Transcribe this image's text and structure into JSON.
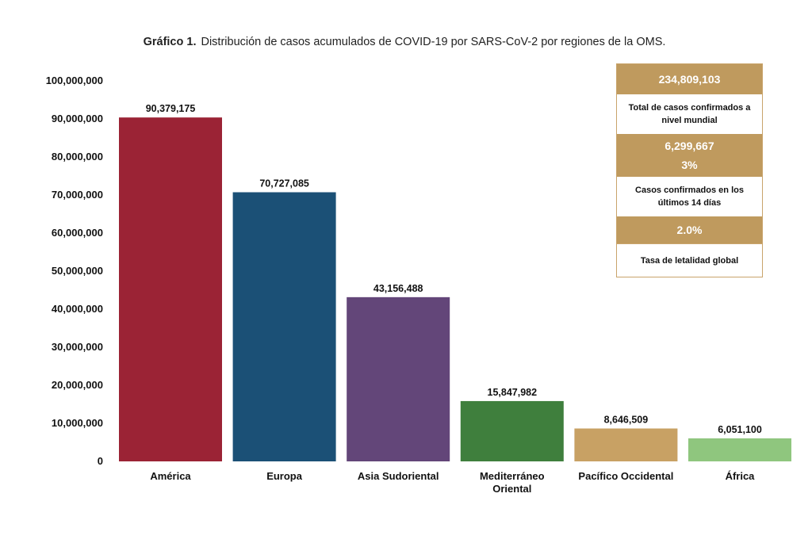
{
  "title": {
    "lead": "Gráfico 1.",
    "text": "Distribución de casos acumulados de COVID-19 por SARS-CoV-2 por regiones de la OMS."
  },
  "chart_data": {
    "type": "bar",
    "categories": [
      "América",
      "Europa",
      "Asia Sudoriental",
      "Mediterráneo Oriental",
      "Pacífico Occidental",
      "África"
    ],
    "category_lines": [
      [
        "América"
      ],
      [
        "Europa"
      ],
      [
        "Asia Sudoriental"
      ],
      [
        "Mediterráneo",
        "Oriental"
      ],
      [
        "Pacífico Occidental"
      ],
      [
        "África"
      ]
    ],
    "values": [
      90379175,
      70727085,
      43156488,
      15847982,
      8646509,
      6051100
    ],
    "value_labels": [
      "90,379,175",
      "70,727,085",
      "43,156,488",
      "15,847,982",
      "8,646,509",
      "6,051,100"
    ],
    "colors": [
      "#9b2335",
      "#1b5076",
      "#634679",
      "#3f7f3d",
      "#c8a164",
      "#8fc67e"
    ],
    "ylim": [
      0,
      100000000
    ],
    "yticks": [
      0,
      10000000,
      20000000,
      30000000,
      40000000,
      50000000,
      60000000,
      70000000,
      80000000,
      90000000,
      100000000
    ],
    "ytick_labels": [
      "0",
      "10,000,000",
      "20,000,000",
      "30,000,000",
      "40,000,000",
      "50,000,000",
      "60,000,000",
      "70,000,000",
      "80,000,000",
      "90,000,000",
      "100,000,000"
    ],
    "grid": false,
    "legend": "none",
    "xlabel": "",
    "ylabel": ""
  },
  "summary": {
    "total_value": "234,809,103",
    "total_label": "Total de casos confirmados a nivel mundial",
    "recent_value": "6,299,667",
    "recent_percent": "3%",
    "recent_label": "Casos confirmados en los últimos 14 días",
    "lethality_value": "2.0%",
    "lethality_label": "Tasa de letalidad global",
    "color": "#bf9a5e"
  }
}
